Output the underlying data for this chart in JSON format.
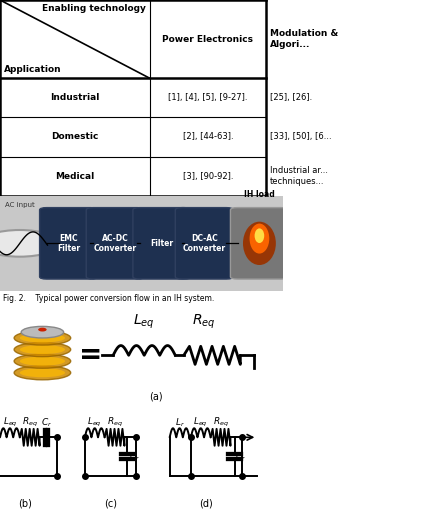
{
  "fig_width": 4.22,
  "fig_height": 5.15,
  "dpi": 100,
  "table": {
    "enabling_technology": "Enabling technology",
    "application": "Application",
    "header_col1": "Power Electronics",
    "header_col2": "Modulation &\nAlgori...",
    "rows": [
      [
        "Industrial",
        "[1], [4], [5], [9-27].",
        "[25], [26]."
      ],
      [
        "Domestic",
        "[2], [44-63].",
        "[33], [50], [6..."
      ],
      [
        "Medical",
        "[3], [90-92].",
        "Industrial ar...\ntechniques..."
      ]
    ]
  },
  "flow": {
    "bg_color": "#c8c8c8",
    "block_color": "#1e3050",
    "block_edge": "#2a3a60",
    "blocks": [
      "EMC\nFilter",
      "AC-DC\nConverter",
      "Filter",
      "DC-AC\nConverter"
    ],
    "ac_input": "AC input",
    "ih_load": "IH load"
  },
  "caption": "Fig. 2.    Typical power conversion flow in an IH system.",
  "colors": {
    "ih_outer": "#888888",
    "ih_fire1": "#cc4400",
    "ih_fire2": "#ff8800",
    "ih_glow": "#ffdd00"
  }
}
